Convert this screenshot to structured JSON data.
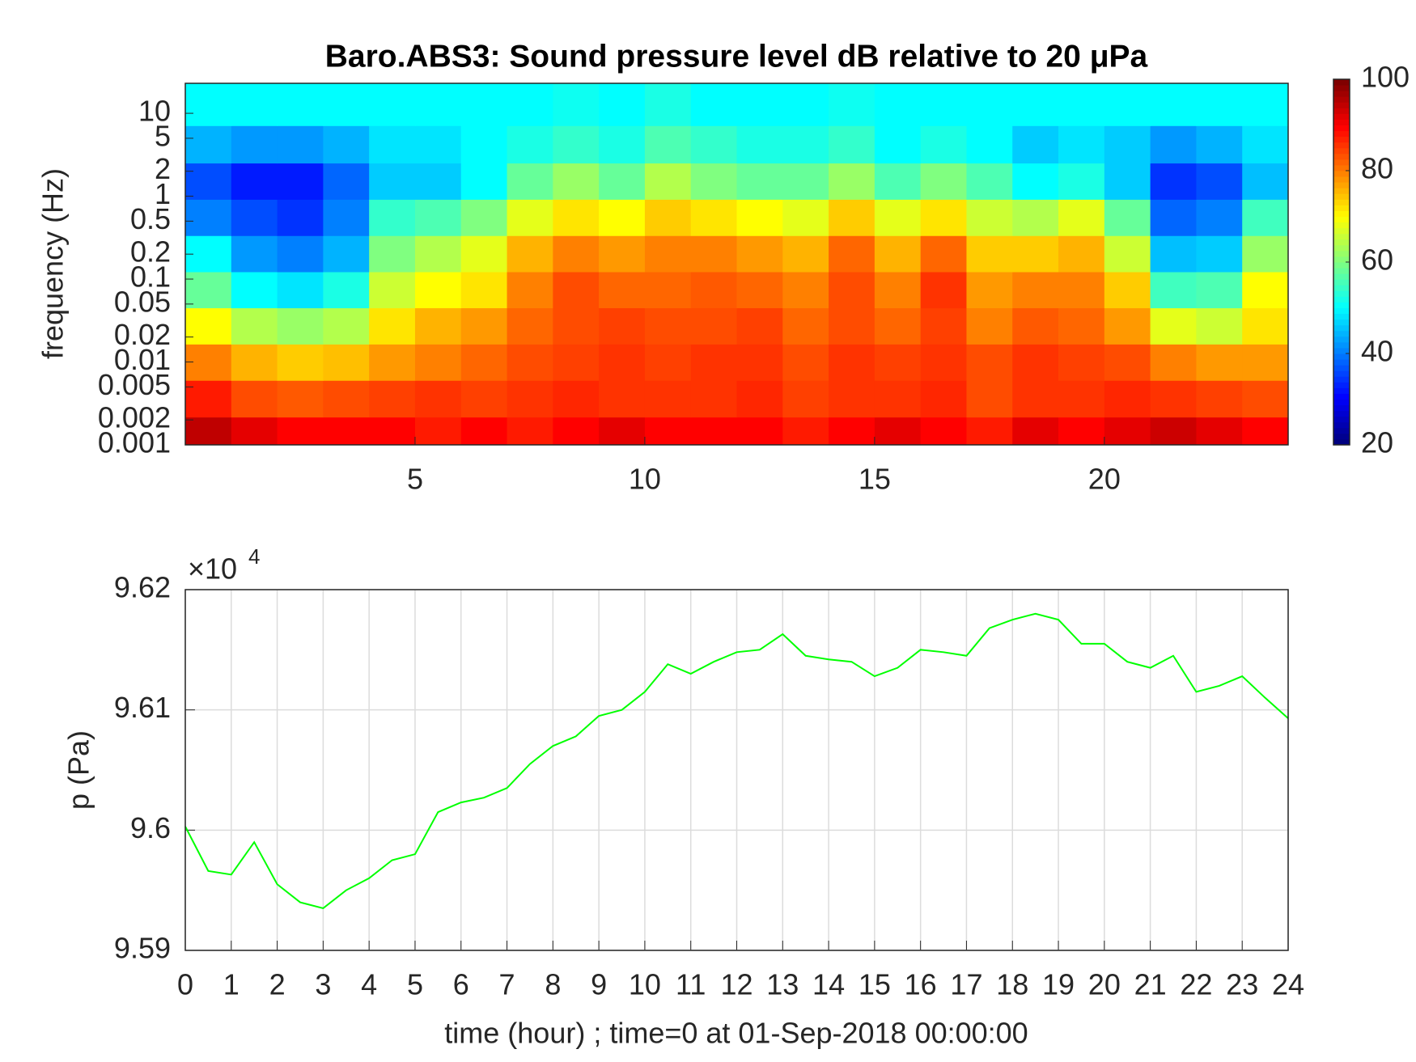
{
  "chart_data": [
    {
      "type": "heatmap",
      "title": "Baro.ABS3: Sound pressure level dB relative to 20 μPa",
      "ylabel": "frequency (Hz)",
      "x": [
        0.5,
        1.5,
        2.5,
        3.5,
        4.5,
        5.5,
        6.5,
        7.5,
        8.5,
        9.5,
        10.5,
        11.5,
        12.5,
        13.5,
        14.5,
        15.5,
        16.5,
        17.5,
        18.5,
        19.5,
        20.5,
        21.5,
        22.5,
        23.5
      ],
      "y": [
        0.0013,
        0.0036,
        0.01,
        0.027,
        0.075,
        0.2,
        0.56,
        1.5,
        4.2,
        12
      ],
      "z": [
        [
          95,
          92,
          90,
          90,
          90,
          88,
          90,
          88,
          90,
          92,
          90,
          90,
          90,
          88,
          90,
          92,
          90,
          88,
          92,
          90,
          92,
          94,
          92,
          90
        ],
        [
          88,
          84,
          83,
          84,
          85,
          86,
          85,
          86,
          87,
          86,
          86,
          86,
          87,
          85,
          86,
          86,
          87,
          84,
          86,
          86,
          87,
          86,
          85,
          84
        ],
        [
          80,
          76,
          74,
          75,
          78,
          80,
          82,
          84,
          85,
          86,
          85,
          86,
          86,
          84,
          86,
          85,
          86,
          84,
          86,
          85,
          84,
          80,
          78,
          78
        ],
        [
          70,
          64,
          62,
          64,
          72,
          76,
          78,
          82,
          84,
          85,
          84,
          84,
          85,
          82,
          84,
          82,
          85,
          80,
          83,
          82,
          78,
          68,
          66,
          72
        ],
        [
          58,
          50,
          48,
          52,
          66,
          70,
          72,
          80,
          84,
          82,
          82,
          83,
          82,
          80,
          84,
          80,
          86,
          78,
          80,
          80,
          74,
          55,
          56,
          70
        ],
        [
          50,
          42,
          40,
          44,
          60,
          64,
          68,
          76,
          80,
          78,
          80,
          80,
          78,
          76,
          82,
          76,
          82,
          74,
          74,
          76,
          66,
          45,
          46,
          62
        ],
        [
          40,
          36,
          34,
          40,
          54,
          56,
          60,
          68,
          72,
          70,
          74,
          72,
          70,
          68,
          74,
          68,
          72,
          66,
          64,
          68,
          58,
          38,
          40,
          55
        ],
        [
          36,
          32,
          32,
          38,
          46,
          46,
          50,
          58,
          62,
          58,
          64,
          60,
          58,
          58,
          62,
          56,
          60,
          56,
          50,
          52,
          46,
          34,
          36,
          45
        ],
        [
          44,
          42,
          42,
          44,
          48,
          48,
          50,
          52,
          54,
          52,
          56,
          54,
          52,
          52,
          54,
          50,
          52,
          50,
          46,
          48,
          46,
          42,
          44,
          48
        ],
        [
          50,
          50,
          50,
          50,
          50,
          50,
          50,
          50,
          51,
          50,
          52,
          50,
          50,
          50,
          51,
          50,
          50,
          50,
          50,
          50,
          50,
          50,
          50,
          50
        ]
      ],
      "xlim": [
        0,
        24
      ],
      "xticks": [
        5,
        10,
        15,
        20
      ],
      "ylim": [
        0.001,
        23
      ],
      "log_y": true,
      "yticks": [
        0.001,
        0.002,
        0.005,
        0.01,
        0.02,
        0.05,
        0.1,
        0.2,
        0.5,
        1,
        2,
        5,
        10
      ],
      "colormap": "jet",
      "clim": [
        20,
        100
      ],
      "cticks": [
        20,
        40,
        60,
        80,
        100
      ]
    },
    {
      "type": "line",
      "xlabel": "time (hour) ; time=0 at 01-Sep-2018 00:00:00",
      "ylabel": "p (Pa)",
      "y_multiplier": {
        "base": "×10",
        "exponent": "4"
      },
      "x": [
        0,
        0.5,
        1,
        1.5,
        2,
        2.5,
        3,
        3.5,
        4,
        4.5,
        5,
        5.5,
        6,
        6.5,
        7,
        7.5,
        8,
        8.5,
        9,
        9.5,
        10,
        10.5,
        11,
        11.5,
        12,
        12.5,
        13,
        13.5,
        14,
        14.5,
        15,
        15.5,
        16,
        16.5,
        17,
        17.5,
        18,
        18.5,
        19,
        19.5,
        20,
        20.5,
        21,
        21.5,
        22,
        22.5,
        23,
        23.5,
        24
      ],
      "series": [
        {
          "color": "#00ff00",
          "values": [
            96003,
            95966,
            95963,
            95990,
            95955,
            95940,
            95935,
            95950,
            95960,
            95975,
            95980,
            96015,
            96023,
            96027,
            96035,
            96055,
            96070,
            96078,
            96095,
            96100,
            96115,
            96138,
            96130,
            96140,
            96148,
            96150,
            96163,
            96145,
            96142,
            96140,
            96128,
            96135,
            96150,
            96148,
            96145,
            96168,
            96175,
            96180,
            96175,
            96155,
            96155,
            96140,
            96135,
            96145,
            96115,
            96120,
            96128,
            96110,
            96093
          ]
        }
      ],
      "xlim": [
        0,
        24
      ],
      "xticks": [
        0,
        1,
        2,
        3,
        4,
        5,
        6,
        7,
        8,
        9,
        10,
        11,
        12,
        13,
        14,
        15,
        16,
        17,
        18,
        19,
        20,
        21,
        22,
        23,
        24
      ],
      "ylim": [
        95900,
        96200
      ],
      "yticks": [
        {
          "value": 95900,
          "label": "9.59"
        },
        {
          "value": 96000,
          "label": "9.6"
        },
        {
          "value": 96100,
          "label": "9.61"
        },
        {
          "value": 96200,
          "label": "9.62"
        }
      ],
      "grid": true
    }
  ]
}
